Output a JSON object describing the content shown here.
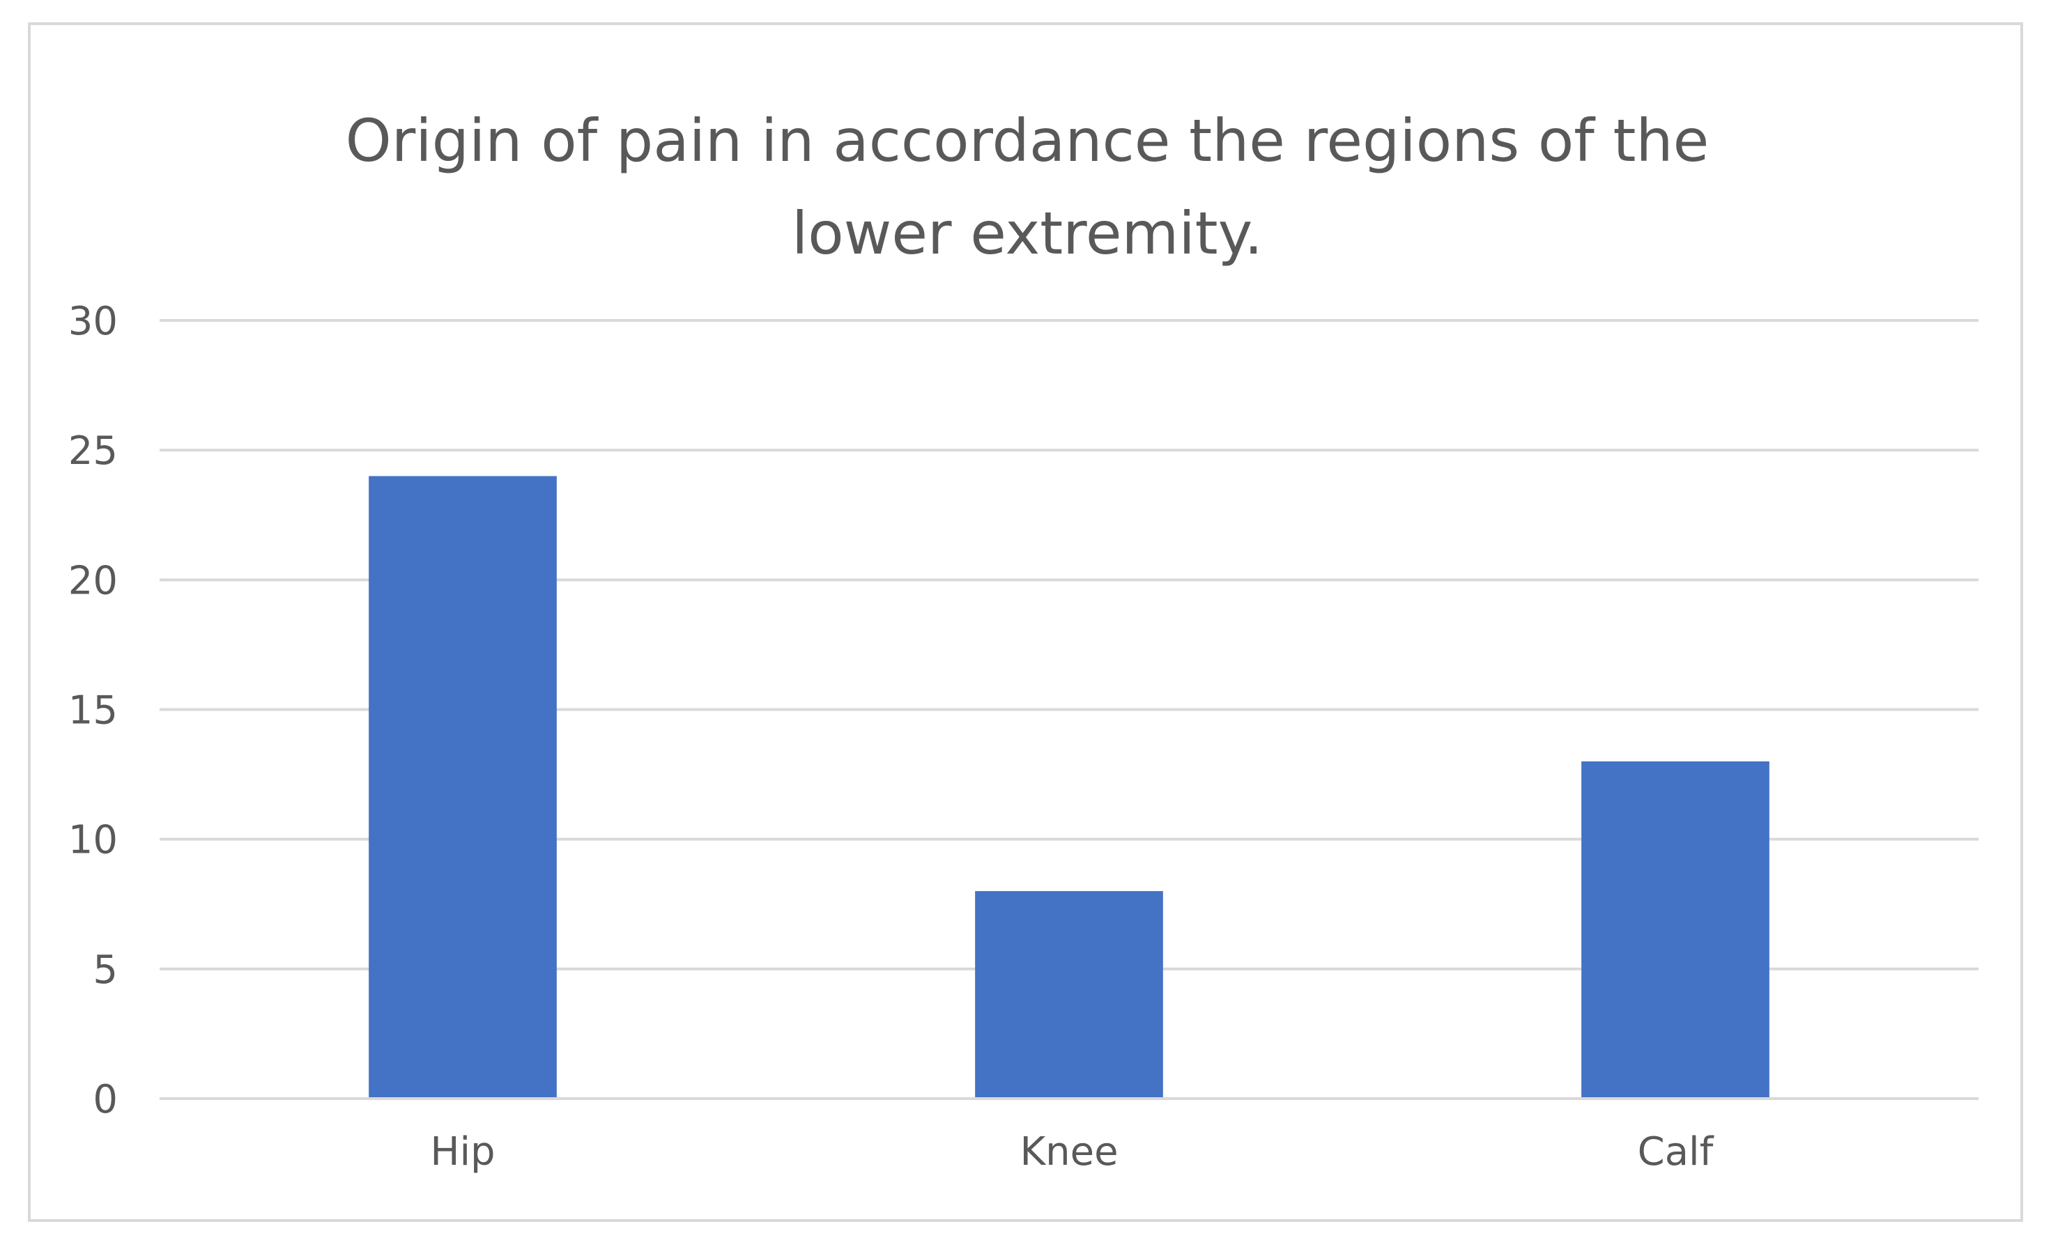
{
  "chart_data": {
    "type": "bar",
    "title": "Origin of pain in accordance the regions of the lower extremity.",
    "title_lines": [
      "Origin of pain in accordance the regions of the",
      "lower extremity."
    ],
    "categories": [
      "Hip",
      "Knee",
      "Calf"
    ],
    "values": [
      24,
      8,
      13
    ],
    "ylim": [
      0,
      30
    ],
    "yticks": [
      "0",
      "5",
      "10",
      "15",
      "20",
      "25",
      "30"
    ],
    "xlabel": "",
    "ylabel": "",
    "grid": true,
    "legend": "none",
    "bar_color": "#4472c4",
    "grid_color": "#d9d9d9",
    "text_color": "#595959"
  }
}
